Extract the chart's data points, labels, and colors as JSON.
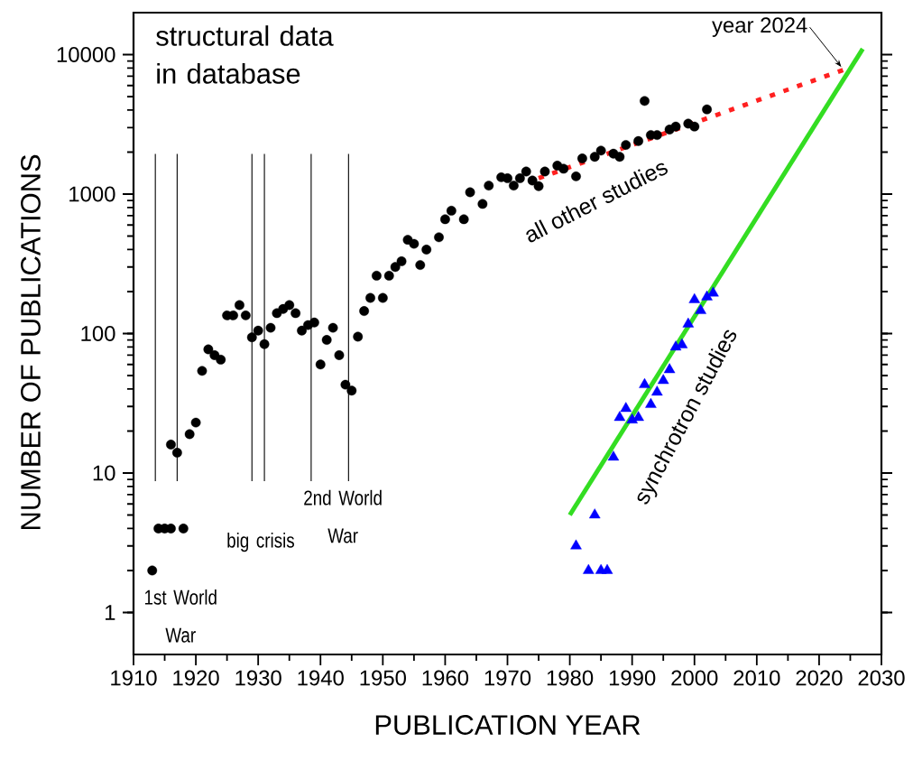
{
  "chart_data": {
    "type": "scatter",
    "title": "structural data in database",
    "xlabel": "PUBLICATION YEAR",
    "ylabel": "NUMBER OF PUBLICATIONS",
    "log": "y",
    "xlim": [
      1910,
      2030
    ],
    "ylim": [
      0.5,
      20000
    ],
    "xticks": [
      1910,
      1920,
      1930,
      1940,
      1950,
      1960,
      1970,
      1980,
      1990,
      2000,
      2010,
      2020,
      2030
    ],
    "yticks": [
      1,
      10,
      100,
      1000,
      10000
    ],
    "series": [
      {
        "name": "all other studies",
        "marker": "circle",
        "color": "#000000",
        "x": [
          1913,
          1914,
          1915,
          1916,
          1916,
          1917,
          1918,
          1919,
          1920,
          1921,
          1922,
          1923,
          1924,
          1925,
          1926,
          1927,
          1928,
          1929,
          1930,
          1931,
          1932,
          1933,
          1934,
          1935,
          1936,
          1937,
          1938,
          1939,
          1940,
          1941,
          1942,
          1943,
          1944,
          1945,
          1946,
          1947,
          1948,
          1949,
          1950,
          1951,
          1952,
          1953,
          1954,
          1955,
          1956,
          1957,
          1959,
          1960,
          1961,
          1963,
          1964,
          1966,
          1967,
          1969,
          1970,
          1971,
          1972,
          1973,
          1974,
          1975,
          1976,
          1978,
          1979,
          1981,
          1982,
          1984,
          1985,
          1987,
          1988,
          1989,
          1991,
          1992,
          1993,
          1994,
          1996,
          1997,
          1999,
          2000,
          2002
        ],
        "values": [
          2,
          4,
          4,
          4,
          16,
          14,
          4,
          19,
          23,
          54,
          77,
          70,
          65,
          135,
          135,
          160,
          135,
          94,
          105,
          84,
          110,
          140,
          150,
          160,
          140,
          105,
          115,
          120,
          60,
          90,
          110,
          70,
          43,
          39,
          95,
          145,
          180,
          260,
          180,
          260,
          300,
          330,
          470,
          440,
          310,
          400,
          490,
          660,
          760,
          660,
          1030,
          850,
          1150,
          1320,
          1300,
          1150,
          1300,
          1450,
          1250,
          1140,
          1450,
          1600,
          1520,
          1340,
          1800,
          1850,
          2050,
          1950,
          1850,
          2250,
          2400,
          4650,
          2650,
          2650,
          2900,
          3050,
          3200,
          3050,
          4050
        ]
      },
      {
        "name": "synchrotron studies",
        "marker": "triangle",
        "color": "#0000ff",
        "x": [
          1981,
          1983,
          1984,
          1985,
          1986,
          1987,
          1988,
          1989,
          1990,
          1991,
          1992,
          1993,
          1994,
          1995,
          1996,
          1997,
          1998,
          1999,
          2000,
          2001,
          2002,
          2003
        ],
        "values": [
          3,
          2,
          5,
          2,
          2,
          13,
          25,
          29,
          24,
          25,
          43,
          31,
          38,
          46,
          55,
          80,
          83,
          117,
          175,
          146,
          183,
          195
        ]
      },
      {
        "type": "line",
        "marker": "none",
        "line_style": "dotted",
        "color": "#ff2020",
        "x": [
          1975,
          2024
        ],
        "values": [
          1300,
          7800
        ]
      },
      {
        "type": "line",
        "marker": "none",
        "line_style": "solid",
        "color": "#33dd22",
        "x": [
          1980,
          2027
        ],
        "values": [
          5,
          11000
        ]
      }
    ],
    "ref_lines": [
      {
        "axis": "x",
        "value": 1913.5,
        "color": "#000000"
      },
      {
        "axis": "x",
        "value": 1917,
        "color": "#000000"
      },
      {
        "axis": "x",
        "value": 1929,
        "color": "#000000"
      },
      {
        "axis": "x",
        "value": 1931,
        "color": "#000000"
      },
      {
        "axis": "x",
        "value": 1938.5,
        "color": "#000000"
      },
      {
        "axis": "x",
        "value": 1944.5,
        "color": "#000000"
      }
    ],
    "annotations": [
      "1st World War",
      "big crisis",
      "2nd World War",
      {
        "text": "year 2024",
        "x": 2024,
        "y": 7800
      }
    ]
  }
}
